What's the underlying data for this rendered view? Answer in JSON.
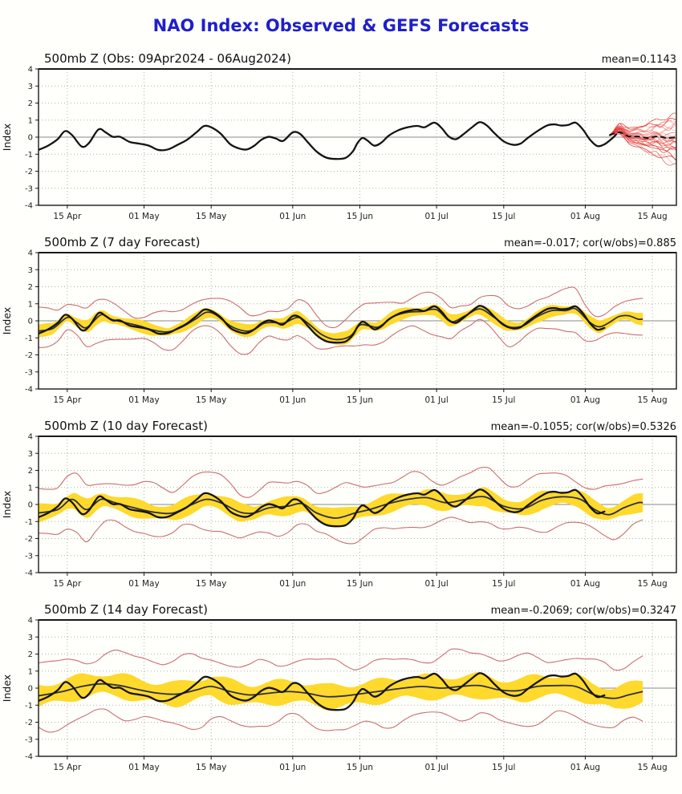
{
  "page": {
    "title": "NAO Index: Observed & GEFS Forecasts",
    "title_color": "#1f1fcb",
    "background": "#fffffb"
  },
  "axis": {
    "ylabel": "Index",
    "ylim": [
      -4,
      4
    ],
    "yticks": [
      4,
      3,
      2,
      1,
      0,
      -1,
      -2,
      -3,
      -4
    ],
    "x_domain_days": [
      0,
      133
    ],
    "x_start_date": "09Apr2024",
    "x_end_date": "20Aug2024",
    "xticks": [
      {
        "label": "15 Apr",
        "day": 6
      },
      {
        "label": "01 May",
        "day": 22
      },
      {
        "label": "15 May",
        "day": 36
      },
      {
        "label": "01 Jun",
        "day": 53
      },
      {
        "label": "15 Jun",
        "day": 67
      },
      {
        "label": "01 Jul",
        "day": 83
      },
      {
        "label": "15 Jul",
        "day": 97
      },
      {
        "label": "01 Aug",
        "day": 114
      },
      {
        "label": "15 Aug",
        "day": 128
      }
    ]
  },
  "colors": {
    "observed_line": "#141414",
    "forecast_line": "#2e2e44",
    "spread_band": "#ffd92b",
    "envelope_line": "#c96f6f",
    "ensemble_member": "#e03636",
    "ensemble_mean_dashed": "#111111",
    "grid_dotted": "#b0b0b0",
    "zero_line": "#8a8a8a",
    "frame": "#1a1a1a",
    "tick_text": "#1f1f1f"
  },
  "chart_data": {
    "type": "line",
    "note": "NAO 500mb Z index, observed curve shared by all four panels; forecast panels show forecast mean, yellow ensemble-spread band and red min/max envelope",
    "observed_series": [
      [
        0,
        -0.75
      ],
      [
        2,
        -0.5
      ],
      [
        4,
        -0.12
      ],
      [
        5.5,
        0.35
      ],
      [
        7,
        0.12
      ],
      [
        9,
        -0.55
      ],
      [
        10.5,
        -0.35
      ],
      [
        12.5,
        0.45
      ],
      [
        14,
        0.28
      ],
      [
        15.5,
        0.02
      ],
      [
        17,
        0.02
      ],
      [
        19,
        -0.28
      ],
      [
        21,
        -0.38
      ],
      [
        23,
        -0.5
      ],
      [
        25,
        -0.75
      ],
      [
        27,
        -0.72
      ],
      [
        29,
        -0.45
      ],
      [
        31,
        -0.15
      ],
      [
        33,
        0.3
      ],
      [
        34.5,
        0.65
      ],
      [
        36,
        0.58
      ],
      [
        38,
        0.2
      ],
      [
        40,
        -0.42
      ],
      [
        42,
        -0.68
      ],
      [
        43.5,
        -0.72
      ],
      [
        45,
        -0.5
      ],
      [
        46.5,
        -0.15
      ],
      [
        48,
        0.02
      ],
      [
        49.5,
        -0.08
      ],
      [
        51,
        -0.22
      ],
      [
        53,
        0.28
      ],
      [
        54.5,
        0.2
      ],
      [
        56,
        -0.25
      ],
      [
        58,
        -0.85
      ],
      [
        60,
        -1.2
      ],
      [
        62,
        -1.28
      ],
      [
        64,
        -1.22
      ],
      [
        65.5,
        -0.85
      ],
      [
        66.5,
        -0.35
      ],
      [
        67.5,
        -0.05
      ],
      [
        68.5,
        -0.18
      ],
      [
        70,
        -0.5
      ],
      [
        71.5,
        -0.32
      ],
      [
        73,
        0.08
      ],
      [
        75,
        0.4
      ],
      [
        77,
        0.58
      ],
      [
        79,
        0.66
      ],
      [
        80.5,
        0.58
      ],
      [
        82.5,
        0.85
      ],
      [
        84,
        0.55
      ],
      [
        85.5,
        0.05
      ],
      [
        87,
        -0.12
      ],
      [
        88.5,
        0.15
      ],
      [
        90.5,
        0.6
      ],
      [
        92,
        0.88
      ],
      [
        93.5,
        0.68
      ],
      [
        95,
        0.25
      ],
      [
        97,
        -0.25
      ],
      [
        99,
        -0.45
      ],
      [
        100.5,
        -0.38
      ],
      [
        102,
        -0.05
      ],
      [
        104,
        0.35
      ],
      [
        106,
        0.68
      ],
      [
        107.5,
        0.75
      ],
      [
        109,
        0.68
      ],
      [
        110.5,
        0.72
      ],
      [
        112,
        0.85
      ],
      [
        113.5,
        0.45
      ],
      [
        115,
        -0.15
      ],
      [
        116.5,
        -0.52
      ],
      [
        118,
        -0.42
      ],
      [
        119.5,
        -0.1
      ],
      [
        120.5,
        0.18
      ]
    ],
    "panels": [
      {
        "kind": "obs",
        "title": "500mb Z (Obs: 09Apr2024 - 06Aug2024)",
        "annotation": "mean=0.1143",
        "mean_value": 0.1143,
        "observed_end_day": 120.5,
        "ensemble": {
          "start_day": 119,
          "end_day": 133,
          "members": 26,
          "fan_halfwidth_end": 1.35,
          "mean_dashed": [
            [
              119,
              0.1
            ],
            [
              121,
              0.28
            ],
            [
              123,
              0.05
            ],
            [
              125,
              0.05
            ],
            [
              127,
              -0.05
            ],
            [
              129,
              0.05
            ],
            [
              131,
              -0.05
            ],
            [
              133,
              0.0
            ]
          ]
        }
      },
      {
        "kind": "forecast",
        "title": "500mb Z (7 day Forecast)",
        "annotation": "mean=-0.017; cor(w/obs)=0.885",
        "mean_value": -0.017,
        "correlation": 0.885,
        "observed_end_day": 118,
        "forecast_end_day": 126,
        "band_halfwidth": 0.3,
        "envelope_halfwidth": 0.95,
        "seed": 1,
        "forecast_series": [
          [
            0,
            -0.6
          ],
          [
            3,
            -0.45
          ],
          [
            6,
            0.2
          ],
          [
            8,
            -0.1
          ],
          [
            10,
            -0.4
          ],
          [
            13,
            0.35
          ],
          [
            15,
            0.1
          ],
          [
            18,
            -0.1
          ],
          [
            21,
            -0.3
          ],
          [
            24,
            -0.55
          ],
          [
            27,
            -0.65
          ],
          [
            30,
            -0.35
          ],
          [
            33,
            0.15
          ],
          [
            35,
            0.5
          ],
          [
            37,
            0.35
          ],
          [
            40,
            -0.3
          ],
          [
            43,
            -0.6
          ],
          [
            45,
            -0.5
          ],
          [
            47,
            -0.15
          ],
          [
            49,
            -0.1
          ],
          [
            51,
            -0.15
          ],
          [
            54,
            0.2
          ],
          [
            56,
            -0.1
          ],
          [
            59,
            -0.8
          ],
          [
            62,
            -1.1
          ],
          [
            65,
            -0.9
          ],
          [
            67,
            -0.25
          ],
          [
            69,
            -0.3
          ],
          [
            71,
            -0.35
          ],
          [
            74,
            0.25
          ],
          [
            77,
            0.5
          ],
          [
            80,
            0.55
          ],
          [
            83,
            0.65
          ],
          [
            86,
            -0.05
          ],
          [
            89,
            0.3
          ],
          [
            92,
            0.7
          ],
          [
            95,
            0.2
          ],
          [
            98,
            -0.35
          ],
          [
            101,
            -0.3
          ],
          [
            104,
            0.25
          ],
          [
            107,
            0.6
          ],
          [
            110,
            0.6
          ],
          [
            112,
            0.7
          ],
          [
            115,
            -0.1
          ],
          [
            117,
            -0.35
          ],
          [
            119,
            -0.1
          ],
          [
            121,
            0.25
          ],
          [
            123,
            0.3
          ],
          [
            125,
            0.1
          ],
          [
            126,
            0.1
          ]
        ]
      },
      {
        "kind": "forecast",
        "title": "500mb Z (10 day Forecast)",
        "annotation": "mean=-0.1055; cor(w/obs)=0.5326",
        "mean_value": -0.1055,
        "correlation": 0.5326,
        "observed_end_day": 118,
        "forecast_end_day": 126,
        "band_halfwidth": 0.45,
        "envelope_halfwidth": 1.4,
        "seed": 2,
        "forecast_series": [
          [
            0,
            -0.5
          ],
          [
            4,
            -0.3
          ],
          [
            7,
            0.3
          ],
          [
            10,
            -0.3
          ],
          [
            13,
            0.3
          ],
          [
            16,
            0.1
          ],
          [
            20,
            -0.2
          ],
          [
            24,
            -0.45
          ],
          [
            28,
            -0.5
          ],
          [
            32,
            0.0
          ],
          [
            35,
            0.3
          ],
          [
            38,
            0.1
          ],
          [
            42,
            -0.45
          ],
          [
            45,
            -0.5
          ],
          [
            48,
            -0.2
          ],
          [
            52,
            -0.1
          ],
          [
            55,
            0.05
          ],
          [
            58,
            -0.5
          ],
          [
            62,
            -0.8
          ],
          [
            66,
            -0.5
          ],
          [
            69,
            -0.3
          ],
          [
            73,
            0.05
          ],
          [
            77,
            0.3
          ],
          [
            81,
            0.4
          ],
          [
            85,
            0.1
          ],
          [
            89,
            0.3
          ],
          [
            93,
            0.45
          ],
          [
            97,
            -0.1
          ],
          [
            101,
            -0.25
          ],
          [
            105,
            0.25
          ],
          [
            109,
            0.45
          ],
          [
            113,
            0.3
          ],
          [
            116,
            -0.3
          ],
          [
            119,
            -0.6
          ],
          [
            122,
            -0.2
          ],
          [
            125,
            0.1
          ],
          [
            126,
            0.1
          ]
        ]
      },
      {
        "kind": "forecast",
        "title": "500mb Z (14 day Forecast)",
        "annotation": "mean=-0.2069; cor(w/obs)=0.3247",
        "mean_value": -0.2069,
        "correlation": 0.3247,
        "observed_end_day": 118,
        "forecast_end_day": 126,
        "band_halfwidth": 0.62,
        "envelope_halfwidth": 1.8,
        "seed": 3,
        "forecast_series": [
          [
            0,
            -0.45
          ],
          [
            5,
            -0.2
          ],
          [
            9,
            0.1
          ],
          [
            13,
            0.25
          ],
          [
            17,
            0.15
          ],
          [
            21,
            -0.1
          ],
          [
            25,
            -0.3
          ],
          [
            29,
            -0.35
          ],
          [
            33,
            -0.1
          ],
          [
            36,
            0.1
          ],
          [
            40,
            -0.2
          ],
          [
            44,
            -0.4
          ],
          [
            48,
            -0.3
          ],
          [
            52,
            -0.2
          ],
          [
            56,
            -0.3
          ],
          [
            60,
            -0.5
          ],
          [
            64,
            -0.45
          ],
          [
            68,
            -0.3
          ],
          [
            72,
            -0.15
          ],
          [
            76,
            0.0
          ],
          [
            80,
            0.1
          ],
          [
            84,
            0.0
          ],
          [
            88,
            0.1
          ],
          [
            92,
            0.15
          ],
          [
            96,
            -0.1
          ],
          [
            100,
            -0.15
          ],
          [
            104,
            0.1
          ],
          [
            108,
            0.15
          ],
          [
            112,
            0.1
          ],
          [
            116,
            -0.4
          ],
          [
            120,
            -0.6
          ],
          [
            123,
            -0.4
          ],
          [
            126,
            -0.2
          ]
        ]
      }
    ]
  }
}
